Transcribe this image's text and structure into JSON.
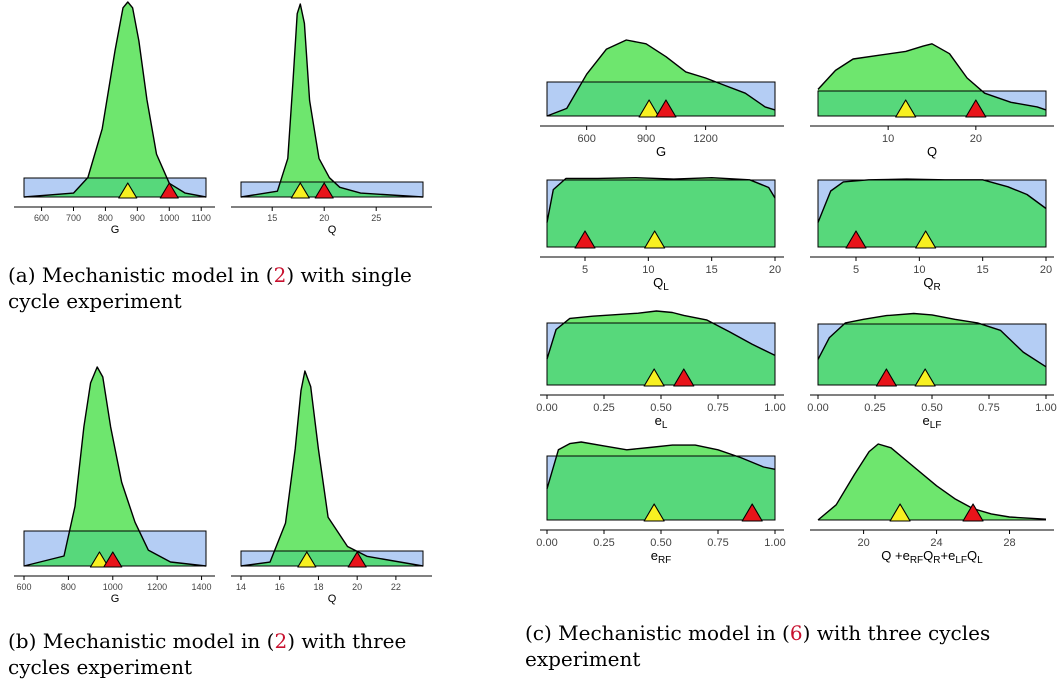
{
  "colors": {
    "prior_fill": "#b4cdf4",
    "posterior_fill": "#6ee66e",
    "overlap_fill": "#57d87b",
    "outline": "#000000",
    "true_marker": "#e8141a",
    "estimate_marker": "#f7f021",
    "axis": "#000000",
    "tick_text": "#444444"
  },
  "captions": [
    {
      "label": "(a)",
      "pre": " Mechanistic model in (",
      "ref": "2",
      "post": ") with single cycle experiment"
    },
    {
      "label": "(b)",
      "pre": " Mechanistic model in (",
      "ref": "2",
      "post": ") with three cycles experiment"
    },
    {
      "label": "(c)",
      "pre": " Mechanistic model in (",
      "ref": "6",
      "post": ") with three cycles experiment"
    }
  ],
  "chart_data": [
    {
      "id": "a-G",
      "type": "density",
      "xlabel": "G",
      "xlim": [
        545,
        1115
      ],
      "ticks": [
        600,
        700,
        800,
        900,
        1000,
        1100
      ],
      "prior_range": [
        545,
        1115
      ],
      "shape": [
        [
          545,
          0
        ],
        [
          700,
          0.02
        ],
        [
          745,
          0.1
        ],
        [
          790,
          0.35
        ],
        [
          830,
          0.75
        ],
        [
          855,
          0.97
        ],
        [
          870,
          1
        ],
        [
          885,
          0.97
        ],
        [
          905,
          0.8
        ],
        [
          930,
          0.5
        ],
        [
          960,
          0.22
        ],
        [
          1000,
          0.07
        ],
        [
          1050,
          0.02
        ],
        [
          1115,
          0
        ]
      ],
      "estimate": 870,
      "true": 1000
    },
    {
      "id": "a-Q",
      "type": "density",
      "xlabel": "Q",
      "xlim": [
        12,
        29.5
      ],
      "ticks": [
        15,
        20,
        25
      ],
      "prior_range": [
        12,
        29.5
      ],
      "shape": [
        [
          12,
          0
        ],
        [
          15.5,
          0.03
        ],
        [
          16.5,
          0.2
        ],
        [
          17.0,
          0.6
        ],
        [
          17.4,
          0.95
        ],
        [
          17.7,
          1
        ],
        [
          18.1,
          0.9
        ],
        [
          18.6,
          0.5
        ],
        [
          19.5,
          0.2
        ],
        [
          20.5,
          0.1
        ],
        [
          21.5,
          0.05
        ],
        [
          23.5,
          0.02
        ],
        [
          29.5,
          0
        ]
      ],
      "estimate": 17.7,
      "true": 20
    },
    {
      "id": "b-G",
      "type": "density",
      "xlabel": "G",
      "xlim": [
        600,
        1420
      ],
      "ticks": [
        600,
        800,
        1000,
        1200,
        1400
      ],
      "prior_range": [
        600,
        1420
      ],
      "shape": [
        [
          600,
          0
        ],
        [
          780,
          0.05
        ],
        [
          830,
          0.3
        ],
        [
          870,
          0.7
        ],
        [
          900,
          0.92
        ],
        [
          930,
          1
        ],
        [
          955,
          0.95
        ],
        [
          990,
          0.7
        ],
        [
          1040,
          0.42
        ],
        [
          1100,
          0.22
        ],
        [
          1160,
          0.08
        ],
        [
          1260,
          0.02
        ],
        [
          1420,
          0
        ]
      ],
      "estimate": 940,
      "true": 1000
    },
    {
      "id": "b-Q",
      "type": "density",
      "xlabel": "Q",
      "xlim": [
        14,
        23.4
      ],
      "ticks": [
        14,
        16,
        18,
        20,
        22
      ],
      "prior_range": [
        14,
        23.4
      ],
      "shape": [
        [
          14,
          0
        ],
        [
          15.5,
          0.02
        ],
        [
          16.3,
          0.22
        ],
        [
          16.8,
          0.6
        ],
        [
          17.1,
          0.9
        ],
        [
          17.3,
          1
        ],
        [
          17.6,
          0.92
        ],
        [
          18.0,
          0.6
        ],
        [
          18.5,
          0.25
        ],
        [
          19.5,
          0.1
        ],
        [
          20.5,
          0.05
        ],
        [
          23.4,
          0
        ]
      ],
      "estimate": 17.4,
      "true": 20
    },
    {
      "id": "c-G",
      "type": "density",
      "xlabel": "G",
      "xlim": [
        400,
        1550
      ],
      "ticks": [
        600,
        900,
        1200
      ],
      "prior_range": [
        400,
        1550
      ],
      "shape": [
        [
          400,
          0
        ],
        [
          500,
          0.1
        ],
        [
          600,
          0.55
        ],
        [
          700,
          0.88
        ],
        [
          800,
          1
        ],
        [
          900,
          0.95
        ],
        [
          1000,
          0.78
        ],
        [
          1100,
          0.58
        ],
        [
          1200,
          0.5
        ],
        [
          1300,
          0.4
        ],
        [
          1400,
          0.3
        ],
        [
          1500,
          0.12
        ],
        [
          1550,
          0.08
        ]
      ],
      "estimate": 915,
      "true": 1000
    },
    {
      "id": "c-Q",
      "type": "density",
      "xlabel": "Q",
      "xlim": [
        2,
        28
      ],
      "ticks": [
        10,
        20
      ],
      "prior_range": [
        2,
        28
      ],
      "shape": [
        [
          2,
          0.35
        ],
        [
          4,
          0.6
        ],
        [
          6,
          0.75
        ],
        [
          9,
          0.8
        ],
        [
          12,
          0.85
        ],
        [
          14,
          0.92
        ],
        [
          15,
          0.95
        ],
        [
          17,
          0.82
        ],
        [
          19,
          0.5
        ],
        [
          21,
          0.3
        ],
        [
          24,
          0.18
        ],
        [
          27,
          0.12
        ],
        [
          28,
          0.08
        ]
      ],
      "estimate": 12,
      "true": 20
    },
    {
      "id": "c-QL",
      "type": "density",
      "xlabel": "Q",
      "xlabel_sub": "L",
      "xlim": [
        2,
        20
      ],
      "ticks": [
        5,
        10,
        15,
        20
      ],
      "prior_range": [
        2,
        20
      ],
      "shape": [
        [
          2,
          0.35
        ],
        [
          2.5,
          0.82
        ],
        [
          3.5,
          0.98
        ],
        [
          6,
          0.98
        ],
        [
          9,
          0.99
        ],
        [
          12,
          0.97
        ],
        [
          15,
          0.99
        ],
        [
          18,
          0.96
        ],
        [
          19.5,
          0.85
        ],
        [
          20,
          0.7
        ]
      ],
      "estimate": 10.5,
      "true": 5
    },
    {
      "id": "c-QR",
      "type": "density",
      "xlabel": "Q",
      "xlabel_sub": "R",
      "xlim": [
        2,
        20
      ],
      "ticks": [
        5,
        10,
        15,
        20
      ],
      "prior_range": [
        2,
        20
      ],
      "shape": [
        [
          2,
          0.35
        ],
        [
          3,
          0.8
        ],
        [
          4,
          0.93
        ],
        [
          6,
          0.96
        ],
        [
          9,
          0.97
        ],
        [
          12,
          0.96
        ],
        [
          15,
          0.96
        ],
        [
          17,
          0.86
        ],
        [
          18.5,
          0.75
        ],
        [
          20,
          0.55
        ]
      ],
      "estimate": 10.5,
      "true": 5
    },
    {
      "id": "c-eL",
      "type": "density",
      "xlabel": "e",
      "xlabel_sub": "L",
      "xlim": [
        0,
        1
      ],
      "ticks": [
        0.0,
        0.25,
        0.5,
        0.75,
        1.0
      ],
      "prior_range": [
        0,
        1
      ],
      "shape": [
        [
          0,
          0.35
        ],
        [
          0.04,
          0.75
        ],
        [
          0.1,
          0.9
        ],
        [
          0.2,
          0.93
        ],
        [
          0.3,
          0.95
        ],
        [
          0.4,
          0.97
        ],
        [
          0.48,
          1
        ],
        [
          0.55,
          0.98
        ],
        [
          0.6,
          0.94
        ],
        [
          0.7,
          0.88
        ],
        [
          0.8,
          0.72
        ],
        [
          0.9,
          0.55
        ],
        [
          1,
          0.4
        ]
      ],
      "estimate": 0.47,
      "true": 0.6
    },
    {
      "id": "c-eLF",
      "type": "density",
      "xlabel": "e",
      "xlabel_sub": "LF",
      "xlim": [
        0,
        1
      ],
      "ticks": [
        0.0,
        0.25,
        0.5,
        0.75,
        1.0
      ],
      "prior_range": [
        0,
        1
      ],
      "shape": [
        [
          0,
          0.35
        ],
        [
          0.05,
          0.65
        ],
        [
          0.12,
          0.85
        ],
        [
          0.2,
          0.9
        ],
        [
          0.3,
          0.95
        ],
        [
          0.42,
          0.98
        ],
        [
          0.5,
          0.96
        ],
        [
          0.6,
          0.9
        ],
        [
          0.7,
          0.85
        ],
        [
          0.8,
          0.75
        ],
        [
          0.9,
          0.45
        ],
        [
          1,
          0.25
        ]
      ],
      "estimate": 0.47,
      "true": 0.3
    },
    {
      "id": "c-eRF",
      "type": "density",
      "xlabel": "e",
      "xlabel_sub": "RF",
      "xlim": [
        0,
        1
      ],
      "ticks": [
        0.0,
        0.25,
        0.5,
        0.75,
        1.0
      ],
      "prior_range": [
        0,
        1
      ],
      "shape": [
        [
          0,
          0.4
        ],
        [
          0.05,
          0.9
        ],
        [
          0.1,
          0.98
        ],
        [
          0.15,
          1
        ],
        [
          0.25,
          0.95
        ],
        [
          0.35,
          0.9
        ],
        [
          0.45,
          0.93
        ],
        [
          0.55,
          0.96
        ],
        [
          0.65,
          0.96
        ],
        [
          0.75,
          0.9
        ],
        [
          0.85,
          0.8
        ],
        [
          0.95,
          0.68
        ],
        [
          1,
          0.65
        ]
      ],
      "estimate": 0.47,
      "true": 0.9
    },
    {
      "id": "c-sum",
      "type": "density",
      "xlabel": "Q +e",
      "xlabel_rich": [
        [
          "Q +e",
          ""
        ],
        [
          "RF",
          "sub"
        ],
        [
          "Q",
          ""
        ],
        [
          "R",
          "sub"
        ],
        [
          "+e",
          ""
        ],
        [
          "LF",
          "sub"
        ],
        [
          "Q",
          ""
        ],
        [
          "L",
          "sub"
        ]
      ],
      "xlim": [
        17.5,
        30
      ],
      "ticks": [
        20,
        24,
        28
      ],
      "prior_range": null,
      "shape": [
        [
          17.5,
          0
        ],
        [
          18.5,
          0.2
        ],
        [
          19.5,
          0.6
        ],
        [
          20.3,
          0.9
        ],
        [
          20.8,
          1
        ],
        [
          21.5,
          0.95
        ],
        [
          22.5,
          0.75
        ],
        [
          24,
          0.45
        ],
        [
          25,
          0.28
        ],
        [
          26,
          0.15
        ],
        [
          27,
          0.08
        ],
        [
          28,
          0.04
        ],
        [
          30,
          0.01
        ]
      ],
      "estimate": 22,
      "true": 26
    }
  ]
}
